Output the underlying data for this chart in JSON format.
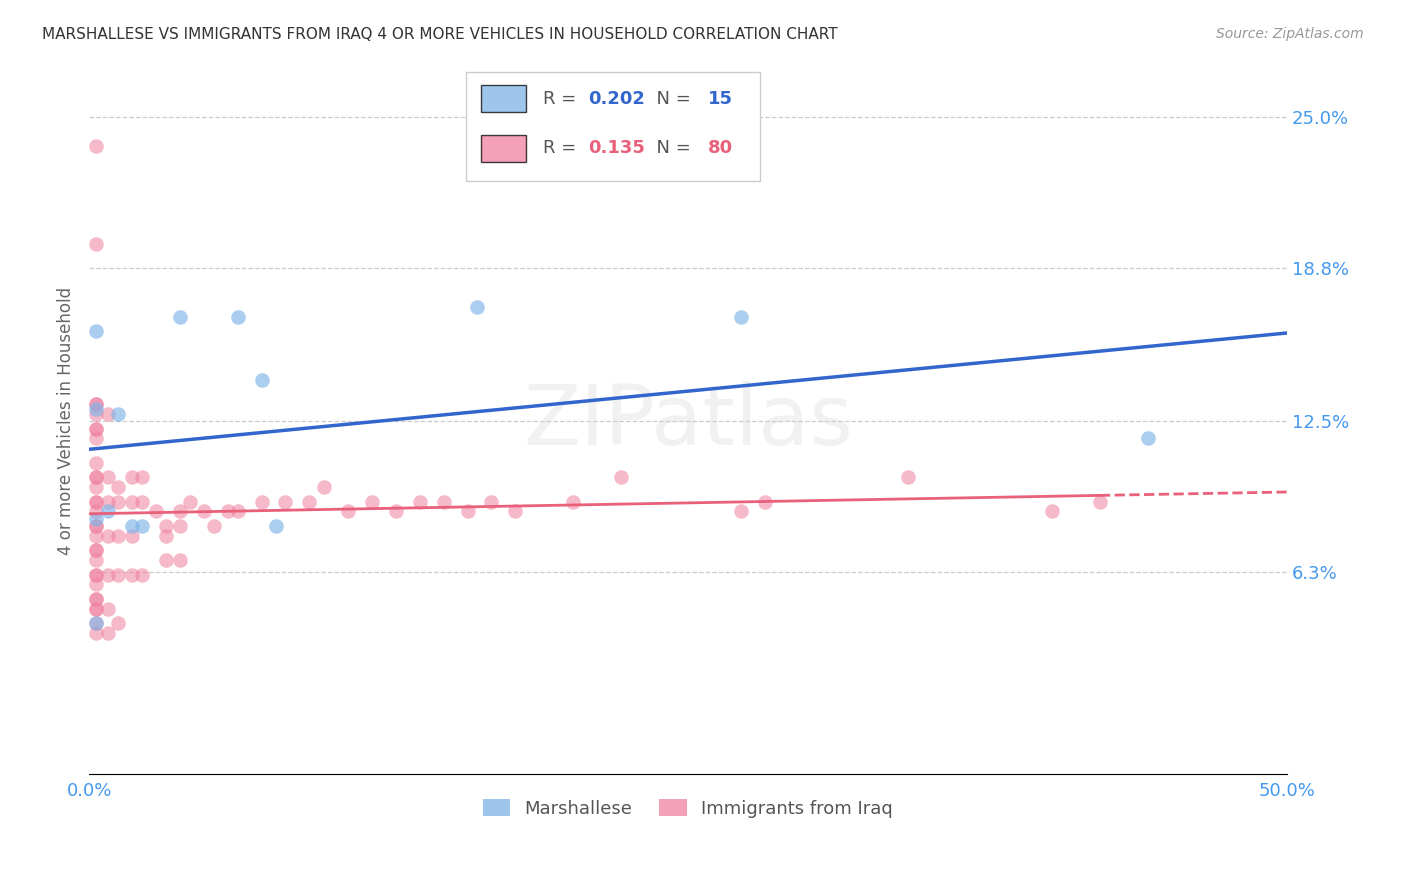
{
  "title": "MARSHALLESE VS IMMIGRANTS FROM IRAQ 4 OR MORE VEHICLES IN HOUSEHOLD CORRELATION CHART",
  "source": "Source: ZipAtlas.com",
  "ylabel": "4 or more Vehicles in Household",
  "x_min": 0.0,
  "x_max": 0.5,
  "y_min": -0.02,
  "y_max": 0.27,
  "y_tick_labels_right": [
    "6.3%",
    "12.5%",
    "18.8%",
    "25.0%"
  ],
  "y_tick_values_right": [
    0.063,
    0.125,
    0.188,
    0.25
  ],
  "watermark": "ZIPatlas",
  "blue_color": "#7EB3E8",
  "pink_color": "#F080A0",
  "blue_line_color": "#3366CC",
  "pink_line_color": "#E8607A",
  "legend_r_blue": "0.202",
  "legend_n_blue": "15",
  "legend_r_pink": "0.135",
  "legend_n_pink": "80",
  "legend_label_blue": "Marshallese",
  "legend_label_pink": "Immigrants from Iraq",
  "marshallese_x": [
    0.003,
    0.003,
    0.003,
    0.008,
    0.012,
    0.018,
    0.022,
    0.038,
    0.062,
    0.072,
    0.078,
    0.162,
    0.272,
    0.442,
    0.003
  ],
  "marshallese_y": [
    0.162,
    0.13,
    0.085,
    0.088,
    0.128,
    0.082,
    0.082,
    0.168,
    0.168,
    0.142,
    0.082,
    0.172,
    0.168,
    0.118,
    0.042
  ],
  "iraq_x": [
    0.003,
    0.003,
    0.003,
    0.003,
    0.003,
    0.003,
    0.003,
    0.003,
    0.003,
    0.003,
    0.003,
    0.003,
    0.003,
    0.003,
    0.003,
    0.003,
    0.003,
    0.003,
    0.003,
    0.003,
    0.003,
    0.003,
    0.003,
    0.003,
    0.003,
    0.003,
    0.003,
    0.003,
    0.003,
    0.003,
    0.008,
    0.008,
    0.008,
    0.008,
    0.008,
    0.008,
    0.008,
    0.012,
    0.012,
    0.012,
    0.012,
    0.012,
    0.018,
    0.018,
    0.018,
    0.018,
    0.022,
    0.022,
    0.022,
    0.028,
    0.032,
    0.032,
    0.032,
    0.038,
    0.038,
    0.038,
    0.042,
    0.048,
    0.052,
    0.058,
    0.062,
    0.072,
    0.082,
    0.092,
    0.098,
    0.108,
    0.118,
    0.128,
    0.138,
    0.148,
    0.158,
    0.168,
    0.178,
    0.202,
    0.222,
    0.272,
    0.282,
    0.342,
    0.402,
    0.422
  ],
  "iraq_y": [
    0.238,
    0.198,
    0.132,
    0.122,
    0.118,
    0.108,
    0.102,
    0.092,
    0.088,
    0.082,
    0.078,
    0.072,
    0.068,
    0.062,
    0.058,
    0.052,
    0.048,
    0.048,
    0.042,
    0.038,
    0.132,
    0.122,
    0.102,
    0.092,
    0.082,
    0.062,
    0.052,
    0.128,
    0.098,
    0.072,
    0.128,
    0.102,
    0.092,
    0.078,
    0.062,
    0.048,
    0.038,
    0.098,
    0.092,
    0.078,
    0.062,
    0.042,
    0.102,
    0.092,
    0.078,
    0.062,
    0.102,
    0.092,
    0.062,
    0.088,
    0.082,
    0.078,
    0.068,
    0.088,
    0.082,
    0.068,
    0.092,
    0.088,
    0.082,
    0.088,
    0.088,
    0.092,
    0.092,
    0.092,
    0.098,
    0.088,
    0.092,
    0.088,
    0.092,
    0.092,
    0.088,
    0.092,
    0.088,
    0.092,
    0.102,
    0.088,
    0.092,
    0.102,
    0.088,
    0.092
  ]
}
